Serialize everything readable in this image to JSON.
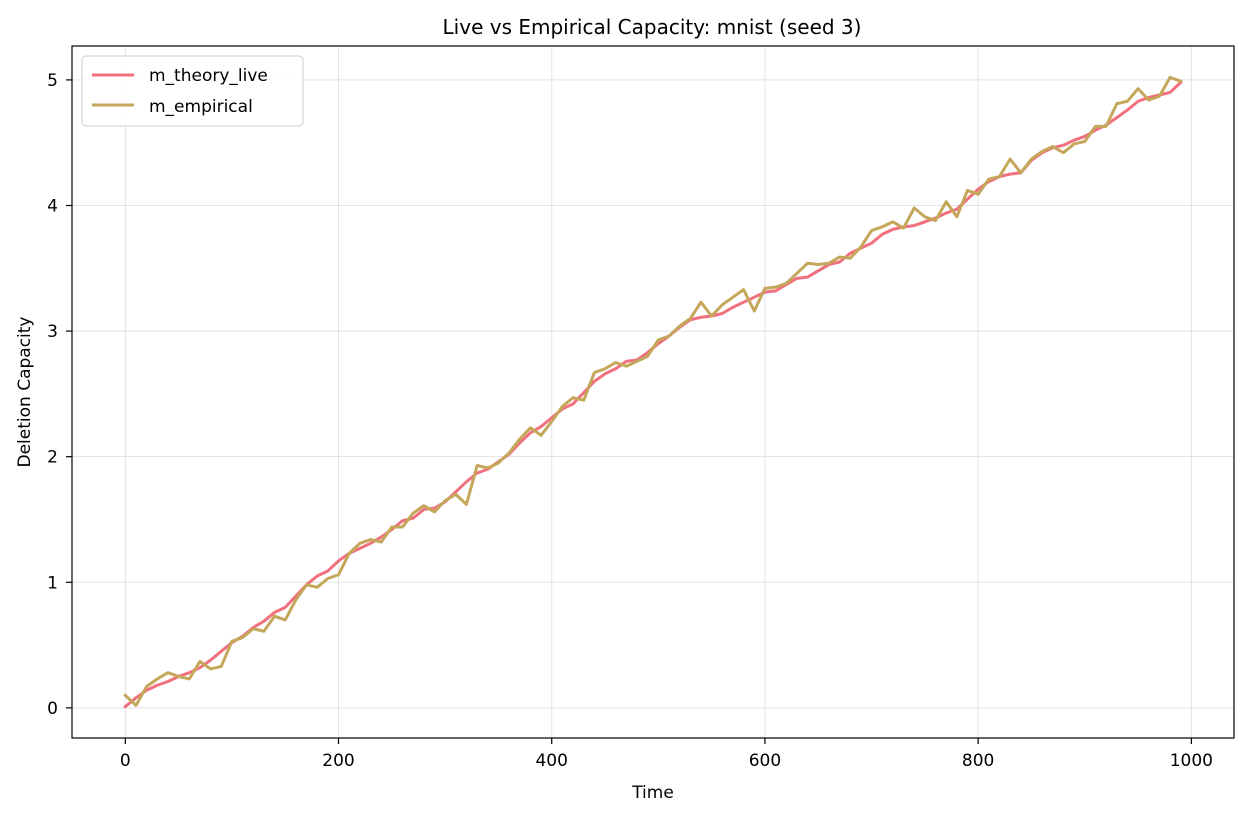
{
  "chart_data": {
    "type": "line",
    "title": "Live vs Empirical Capacity: mnist (seed 3)",
    "xlabel": "Time",
    "ylabel": "Deletion Capacity",
    "xlim": [
      -50,
      1040
    ],
    "ylim": [
      -0.24,
      5.27
    ],
    "xticks": [
      0,
      200,
      400,
      600,
      800,
      1000
    ],
    "yticks": [
      0,
      1,
      2,
      3,
      4,
      5
    ],
    "xtick_labels": [
      "0",
      "200",
      "400",
      "600",
      "800",
      "1000"
    ],
    "ytick_labels": [
      "0",
      "1",
      "2",
      "3",
      "4",
      "5"
    ],
    "grid": true,
    "legend_position": "top-left",
    "x": [
      0,
      10,
      20,
      30,
      40,
      50,
      60,
      70,
      80,
      90,
      100,
      110,
      120,
      130,
      140,
      150,
      160,
      170,
      180,
      190,
      200,
      210,
      220,
      230,
      240,
      250,
      260,
      270,
      280,
      290,
      300,
      310,
      320,
      330,
      340,
      350,
      360,
      370,
      380,
      390,
      400,
      410,
      420,
      430,
      440,
      450,
      460,
      470,
      480,
      490,
      500,
      510,
      520,
      530,
      540,
      550,
      560,
      570,
      580,
      590,
      600,
      610,
      620,
      630,
      640,
      650,
      660,
      670,
      680,
      690,
      700,
      710,
      720,
      730,
      740,
      750,
      760,
      770,
      780,
      790,
      800,
      810,
      820,
      830,
      840,
      850,
      860,
      870,
      880,
      890,
      900,
      910,
      920,
      930,
      940,
      950,
      960,
      970,
      980,
      990
    ],
    "series": [
      {
        "name": "m_theory_live",
        "color": "#f0707e",
        "values": [
          0.01,
          0.08,
          0.14,
          0.18,
          0.21,
          0.25,
          0.28,
          0.32,
          0.38,
          0.45,
          0.52,
          0.57,
          0.64,
          0.69,
          0.76,
          0.8,
          0.89,
          0.98,
          1.05,
          1.09,
          1.17,
          1.23,
          1.27,
          1.31,
          1.36,
          1.42,
          1.49,
          1.51,
          1.58,
          1.59,
          1.64,
          1.72,
          1.8,
          1.87,
          1.9,
          1.96,
          2.02,
          2.11,
          2.19,
          2.24,
          2.31,
          2.38,
          2.42,
          2.51,
          2.6,
          2.66,
          2.7,
          2.76,
          2.77,
          2.83,
          2.9,
          2.96,
          3.03,
          3.09,
          3.11,
          3.12,
          3.14,
          3.19,
          3.23,
          3.27,
          3.31,
          3.32,
          3.37,
          3.42,
          3.43,
          3.48,
          3.53,
          3.55,
          3.62,
          3.66,
          3.7,
          3.77,
          3.81,
          3.83,
          3.84,
          3.87,
          3.9,
          3.94,
          3.97,
          4.05,
          4.13,
          4.19,
          4.23,
          4.25,
          4.26,
          4.36,
          4.42,
          4.46,
          4.48,
          4.52,
          4.55,
          4.6,
          4.64,
          4.7,
          4.76,
          4.83,
          4.86,
          4.88,
          4.9,
          4.98
        ]
      },
      {
        "name": "m_empirical",
        "color": "#c4a75a",
        "values": [
          0.1,
          0.02,
          0.17,
          0.23,
          0.28,
          0.25,
          0.23,
          0.37,
          0.31,
          0.33,
          0.53,
          0.56,
          0.63,
          0.61,
          0.73,
          0.7,
          0.86,
          0.98,
          0.96,
          1.03,
          1.06,
          1.23,
          1.31,
          1.34,
          1.32,
          1.44,
          1.44,
          1.55,
          1.61,
          1.56,
          1.65,
          1.7,
          1.62,
          1.93,
          1.91,
          1.95,
          2.03,
          2.14,
          2.23,
          2.17,
          2.28,
          2.4,
          2.47,
          2.45,
          2.67,
          2.7,
          2.75,
          2.72,
          2.76,
          2.8,
          2.93,
          2.96,
          3.04,
          3.1,
          3.23,
          3.12,
          3.21,
          3.27,
          3.33,
          3.16,
          3.34,
          3.35,
          3.38,
          3.46,
          3.54,
          3.53,
          3.54,
          3.59,
          3.58,
          3.67,
          3.8,
          3.83,
          3.87,
          3.82,
          3.98,
          3.91,
          3.88,
          4.03,
          3.91,
          4.12,
          4.09,
          4.21,
          4.23,
          4.37,
          4.26,
          4.37,
          4.43,
          4.47,
          4.42,
          4.49,
          4.51,
          4.63,
          4.63,
          4.81,
          4.83,
          4.93,
          4.84,
          4.87,
          5.02,
          4.99
        ]
      }
    ]
  }
}
